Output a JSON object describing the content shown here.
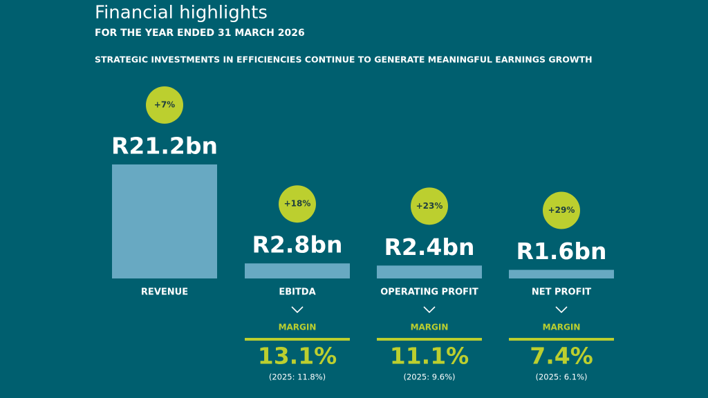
{
  "chart_data": {
    "type": "bar",
    "title": "Financial highlights",
    "subtitle": "FOR THE YEAR ENDED 31 MARCH 2026",
    "headline": "STRATEGIC INVESTMENTS IN EFFICIENCIES CONTINUE TO GENERATE MEANINGFUL EARNINGS GROWTH",
    "categories": [
      "REVENUE",
      "EBITDA",
      "OPERATING PROFIT",
      "NET PROFIT"
    ],
    "values": [
      21.2,
      2.8,
      2.4,
      1.6
    ],
    "value_labels": [
      "R21.2bn",
      "R2.8bn",
      "R2.4bn",
      "R1.6bn"
    ],
    "growth_labels": [
      "+7%",
      "+18%",
      "+23%",
      "+29%"
    ],
    "color": "#68a9c2",
    "accent_color": "#bccf2f",
    "margin_label": "MARGIN",
    "margins": [
      null,
      13.1,
      11.1,
      7.4
    ],
    "margin_labels": [
      null,
      "13.1%",
      "11.1%",
      "7.4%"
    ],
    "prior_margin_labels": [
      null,
      "(2025: 11.8%)",
      "(2025: 9.6%)",
      "(2025: 6.1%)"
    ]
  }
}
